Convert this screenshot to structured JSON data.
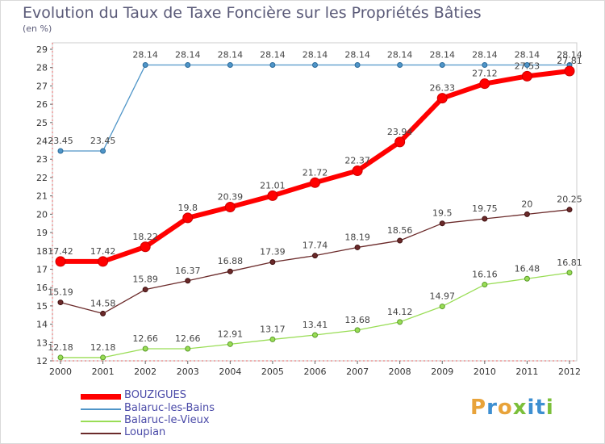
{
  "title": "Evolution du Taux de Taxe Foncière sur les Propriétés Bâties",
  "subtitle": "(en %)",
  "logo": {
    "text": "Proxiti",
    "colors": [
      "#e8a33a",
      "#3d8fd1",
      "#e8a33a",
      "#7bbf3a",
      "#3d8fd1",
      "#3d8fd1",
      "#7bbf3a"
    ]
  },
  "chart_data": {
    "type": "line",
    "title": "Evolution du Taux de Taxe Foncière sur les Propriétés Bâties",
    "ylabel": "(en %)",
    "x": [
      "2000",
      "2001",
      "2002",
      "2003",
      "2004",
      "2005",
      "2006",
      "2007",
      "2008",
      "2009",
      "2010",
      "2011",
      "2012"
    ],
    "ylim": [
      12,
      29
    ],
    "yticks": [
      12,
      13,
      14,
      15,
      16,
      17,
      18,
      19,
      20,
      21,
      22,
      23,
      24,
      25,
      26,
      27,
      28,
      29
    ],
    "grid": false,
    "legend_position": "bottom-left",
    "series": [
      {
        "name": "BOUZIGUES",
        "color": "#ff0000",
        "values": [
          17.42,
          17.42,
          18.22,
          19.8,
          20.39,
          21.01,
          21.72,
          22.37,
          23.94,
          26.33,
          27.12,
          27.53,
          27.81
        ],
        "labels": [
          "17.42",
          "17.42",
          "18.22",
          "19.8",
          "20.39",
          "21.01",
          "21.72",
          "22.37",
          "23.94",
          "26.33",
          "27.12",
          "27.53",
          "27.81"
        ]
      },
      {
        "name": "Balaruc-les-Bains",
        "color": "#4f95c8",
        "values": [
          23.45,
          23.45,
          28.14,
          28.14,
          28.14,
          28.14,
          28.14,
          28.14,
          28.14,
          28.14,
          28.14,
          28.14,
          28.14
        ],
        "labels": [
          "23.45",
          "23.45",
          "28.14",
          "28.14",
          "28.14",
          "28.14",
          "28.14",
          "28.14",
          "28.14",
          "28.14",
          "28.14",
          "28.14",
          "28.14"
        ]
      },
      {
        "name": "Balaruc-le-Vieux",
        "color": "#99dd55",
        "values": [
          12.18,
          12.18,
          12.66,
          12.66,
          12.91,
          13.17,
          13.41,
          13.68,
          14.12,
          14.97,
          16.16,
          16.48,
          16.81
        ],
        "labels": [
          "12.18",
          "12.18",
          "12.66",
          "12.66",
          "12.91",
          "13.17",
          "13.41",
          "13.68",
          "14.12",
          "14.97",
          "16.16",
          "16.48",
          "16.81"
        ]
      },
      {
        "name": "Loupian",
        "color": "#6b2a2a",
        "values": [
          15.19,
          14.58,
          15.89,
          16.37,
          16.88,
          17.39,
          17.74,
          18.19,
          18.56,
          19.5,
          19.75,
          20,
          20.25
        ],
        "labels": [
          "15.19",
          "14.58",
          "15.89",
          "16.37",
          "16.88",
          "17.39",
          "17.74",
          "18.19",
          "18.56",
          "19.5",
          "19.75",
          "20",
          "20.25"
        ]
      }
    ]
  }
}
